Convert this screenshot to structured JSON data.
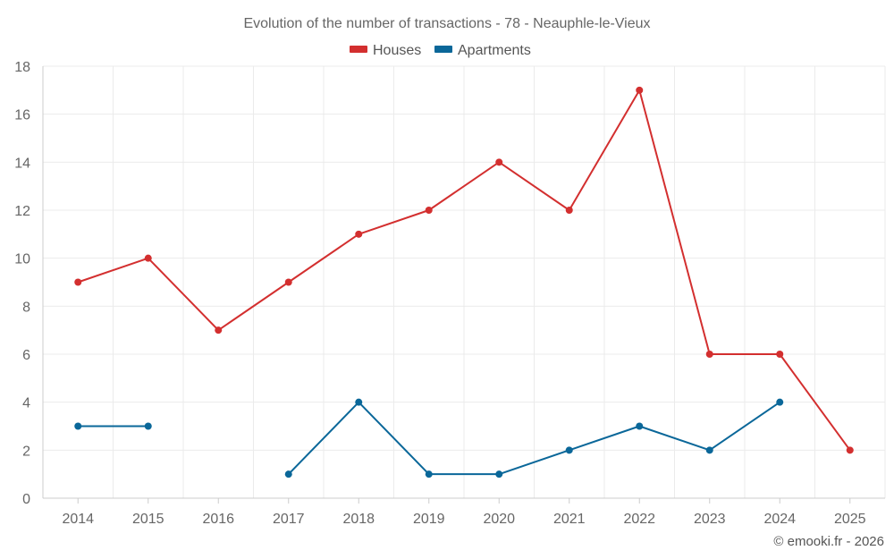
{
  "chart_data": {
    "type": "line",
    "title": "Evolution of the number of transactions - 78 - Neauphle-le-Vieux",
    "categories": [
      "2014",
      "2015",
      "2016",
      "2017",
      "2018",
      "2019",
      "2020",
      "2021",
      "2022",
      "2023",
      "2024",
      "2025"
    ],
    "series": [
      {
        "name": "Houses",
        "color": "#d32f2f",
        "values": [
          9,
          10,
          7,
          9,
          11,
          12,
          14,
          12,
          17,
          6,
          6,
          2
        ]
      },
      {
        "name": "Apartments",
        "color": "#0a6799",
        "values": [
          3,
          3,
          null,
          1,
          4,
          1,
          1,
          2,
          3,
          2,
          4,
          null
        ]
      }
    ],
    "ylim": [
      0,
      18
    ],
    "yticks": [
      0,
      2,
      4,
      6,
      8,
      10,
      12,
      14,
      16,
      18
    ],
    "xlabel": "",
    "ylabel": "",
    "grid": true,
    "legend": "top-center"
  },
  "credit": "© emooki.fr - 2026"
}
